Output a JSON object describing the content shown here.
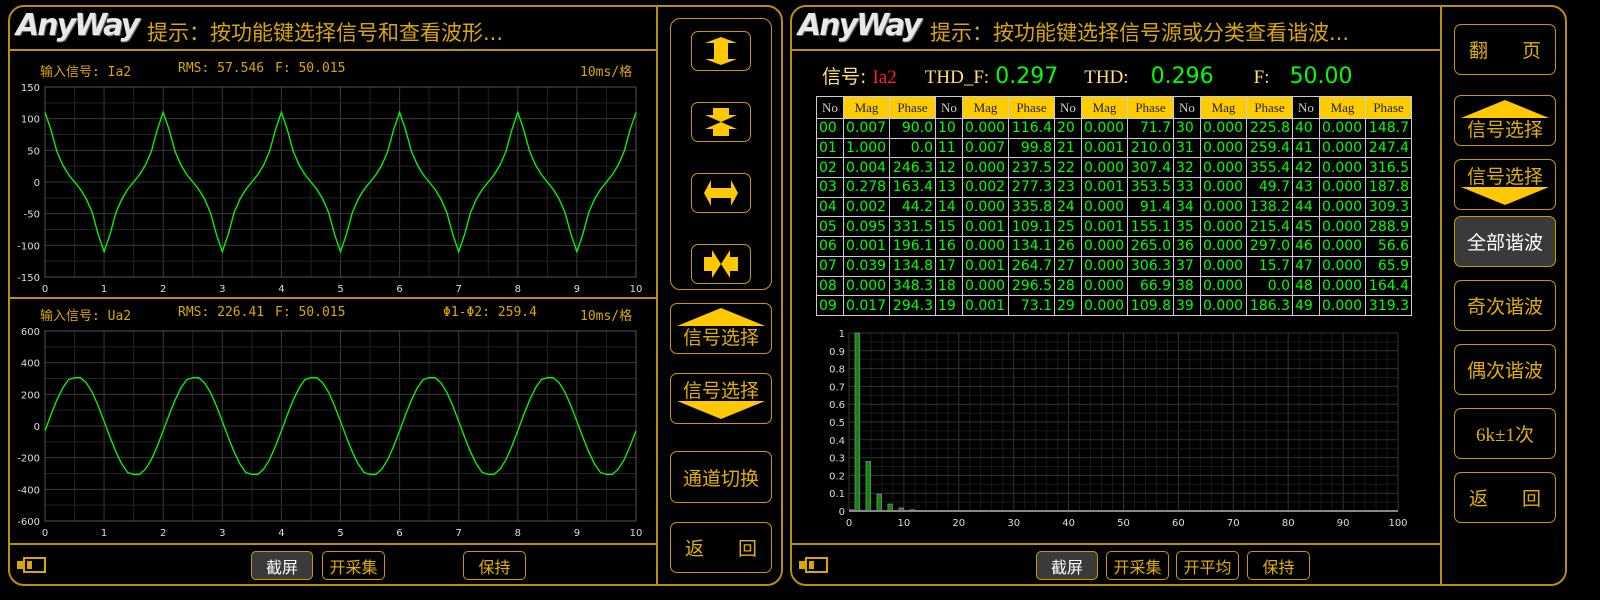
{
  "colors": {
    "accent": "#d9a800",
    "wave": "#00ff00",
    "active_button": "#3a3a3a",
    "table_header": "#ffcc00",
    "signal_name": "#ff2020"
  },
  "left_window": {
    "logo": "AnyWay",
    "hint": "提示：按功能键选择信号和查看波形...",
    "panel1": {
      "signal": "输入信号: Ia2",
      "rms": "RMS: 57.546",
      "freq": "F: 50.015",
      "scale": "10ms/格"
    },
    "panel2": {
      "signal": "输入信号: Ua2",
      "rms": "RMS: 226.41",
      "freq": "F: 50.015",
      "phase_diff": "Φ1-Φ2: 259.4",
      "scale": "10ms/格"
    },
    "side_buttons": {
      "icons": [
        "expand-vertical-icon",
        "compress-vertical-icon",
        "expand-horizontal-icon",
        "compress-horizontal-icon"
      ],
      "signal_up": "信号选择",
      "signal_down": "信号选择",
      "channel_switch": "通道切换",
      "back_left": "返",
      "back_right": "回"
    },
    "bottom": {
      "battery_icon": "battery-icon",
      "screenshot": "截屏",
      "start_capture": "开采集",
      "hold": "保持"
    }
  },
  "right_window": {
    "logo": "AnyWay",
    "hint": "提示：按功能键选择信号源或分类查看谐波...",
    "info": {
      "signal_label": "信号:",
      "signal_value": "Ia2",
      "thd_f_label": "THD_F:",
      "thd_f_value": "0.297",
      "thd_label": "THD:",
      "thd_value": "0.296",
      "f_label": "F:",
      "f_value": "50.00"
    },
    "table_headers": {
      "no": "No",
      "mag": "Mag",
      "phase": "Phase"
    },
    "side_buttons": {
      "page_left": "翻",
      "page_right": "页",
      "signal_up": "信号选择",
      "signal_down": "信号选择",
      "all": "全部谐波",
      "odd": "奇次谐波",
      "even": "偶次谐波",
      "six_k": "6k±1次",
      "back_left": "返",
      "back_right": "回"
    },
    "bottom": {
      "battery_icon": "battery-icon",
      "screenshot": "截屏",
      "start_capture": "开采集",
      "start_average": "开平均",
      "hold": "保持"
    }
  },
  "harmonics": [
    [
      "00",
      "0.007",
      "90.0"
    ],
    [
      "01",
      "1.000",
      "0.0"
    ],
    [
      "02",
      "0.004",
      "246.3"
    ],
    [
      "03",
      "0.278",
      "163.4"
    ],
    [
      "04",
      "0.002",
      "44.2"
    ],
    [
      "05",
      "0.095",
      "331.5"
    ],
    [
      "06",
      "0.001",
      "196.1"
    ],
    [
      "07",
      "0.039",
      "134.8"
    ],
    [
      "08",
      "0.000",
      "348.3"
    ],
    [
      "09",
      "0.017",
      "294.3"
    ],
    [
      "10",
      "0.000",
      "116.4"
    ],
    [
      "11",
      "0.007",
      "99.8"
    ],
    [
      "12",
      "0.000",
      "237.5"
    ],
    [
      "13",
      "0.002",
      "277.3"
    ],
    [
      "14",
      "0.000",
      "335.8"
    ],
    [
      "15",
      "0.001",
      "109.1"
    ],
    [
      "16",
      "0.000",
      "134.1"
    ],
    [
      "17",
      "0.001",
      "264.7"
    ],
    [
      "18",
      "0.000",
      "296.5"
    ],
    [
      "19",
      "0.001",
      "73.1"
    ],
    [
      "20",
      "0.000",
      "71.7"
    ],
    [
      "21",
      "0.001",
      "210.0"
    ],
    [
      "22",
      "0.000",
      "307.4"
    ],
    [
      "23",
      "0.001",
      "353.5"
    ],
    [
      "24",
      "0.000",
      "91.4"
    ],
    [
      "25",
      "0.001",
      "155.1"
    ],
    [
      "26",
      "0.000",
      "265.0"
    ],
    [
      "27",
      "0.000",
      "306.3"
    ],
    [
      "28",
      "0.000",
      "66.9"
    ],
    [
      "29",
      "0.000",
      "109.8"
    ],
    [
      "30",
      "0.000",
      "225.8"
    ],
    [
      "31",
      "0.000",
      "259.4"
    ],
    [
      "32",
      "0.000",
      "355.4"
    ],
    [
      "33",
      "0.000",
      "49.7"
    ],
    [
      "34",
      "0.000",
      "138.2"
    ],
    [
      "35",
      "0.000",
      "215.4"
    ],
    [
      "36",
      "0.000",
      "297.0"
    ],
    [
      "37",
      "0.000",
      "15.7"
    ],
    [
      "38",
      "0.000",
      "0.0"
    ],
    [
      "39",
      "0.000",
      "186.3"
    ],
    [
      "40",
      "0.000",
      "148.7"
    ],
    [
      "41",
      "0.000",
      "247.4"
    ],
    [
      "42",
      "0.000",
      "316.5"
    ],
    [
      "43",
      "0.000",
      "187.8"
    ],
    [
      "44",
      "0.000",
      "309.3"
    ],
    [
      "45",
      "0.000",
      "288.9"
    ],
    [
      "46",
      "0.000",
      "56.6"
    ],
    [
      "47",
      "0.000",
      "65.9"
    ],
    [
      "48",
      "0.000",
      "164.4"
    ],
    [
      "49",
      "0.000",
      "319.3"
    ]
  ],
  "chart_data": [
    {
      "type": "line",
      "x_start": 0,
      "x_step": 0.1,
      "xlim": [
        0,
        10
      ],
      "ylim": [
        -150,
        150
      ],
      "xticks": [
        "0",
        "1",
        "2",
        "3",
        "4",
        "5",
        "6",
        "7",
        "8",
        "9",
        "10"
      ],
      "yticks": [
        "150",
        "100",
        "50",
        "0",
        "-50",
        "-100",
        "-150"
      ],
      "grid": true,
      "y": [
        110,
        82.8,
        48.5,
        27,
        11.7,
        0,
        -11.7,
        -27,
        -48.5,
        -82.8,
        -110,
        -82.8,
        -48.5,
        -27,
        -11.7,
        0,
        11.7,
        27,
        48.5,
        82.8,
        110,
        82.8,
        48.5,
        27,
        11.7,
        0,
        -11.7,
        -27,
        -48.5,
        -82.8,
        -110,
        -82.8,
        -48.5,
        -27,
        -11.7,
        0,
        11.7,
        27,
        48.5,
        82.8,
        110,
        82.8,
        48.5,
        27,
        11.7,
        0,
        -11.7,
        -27,
        -48.5,
        -82.8,
        -110,
        -82.8,
        -48.5,
        -27,
        -11.7,
        0,
        11.7,
        27,
        48.5,
        82.8,
        110,
        82.8,
        48.5,
        27,
        11.7,
        0,
        -11.7,
        -27,
        -48.5,
        -82.8,
        -110,
        -82.8,
        -48.5,
        -27,
        -11.7,
        0,
        11.7,
        27,
        48.5,
        82.8,
        110,
        82.8,
        48.5,
        27,
        11.7,
        0,
        -11.7,
        -27,
        -48.5,
        -82.8,
        -110,
        -82.8,
        -48.5,
        -27,
        -11.7,
        0,
        11.7,
        27,
        48.5,
        82.8,
        110
      ]
    },
    {
      "type": "line",
      "x_start": 0,
      "x_step": 0.1,
      "xlim": [
        0,
        10
      ],
      "ylim": [
        -600,
        600
      ],
      "xticks": [
        "0",
        "1",
        "2",
        "3",
        "4",
        "5",
        "6",
        "7",
        "8",
        "9",
        "10"
      ],
      "yticks": [
        "600",
        "400",
        "200",
        "0",
        "-200",
        "-400",
        "-600"
      ],
      "grid": true,
      "y": [
        -30,
        70,
        163,
        240,
        294,
        305,
        305,
        272,
        212,
        127,
        30,
        -70,
        -163,
        -240,
        -294,
        -305,
        -305,
        -272,
        -212,
        -127,
        -30,
        70,
        163,
        240,
        294,
        305,
        305,
        272,
        212,
        127,
        30,
        -70,
        -163,
        -240,
        -294,
        -305,
        -305,
        -272,
        -212,
        -127,
        -30,
        70,
        163,
        240,
        294,
        305,
        305,
        272,
        212,
        127,
        30,
        -70,
        -163,
        -240,
        -294,
        -305,
        -305,
        -272,
        -212,
        -127,
        -30,
        70,
        163,
        240,
        294,
        305,
        305,
        272,
        212,
        127,
        30,
        -70,
        -163,
        -240,
        -294,
        -305,
        -305,
        -272,
        -212,
        -127,
        -30,
        70,
        163,
        240,
        294,
        305,
        305,
        272,
        212,
        127,
        30,
        -70,
        -163,
        -240,
        -294,
        -305,
        -305,
        -272,
        -212,
        -127,
        -30
      ]
    },
    {
      "type": "bar",
      "xlim": [
        0,
        100
      ],
      "ylim": [
        0,
        1
      ],
      "xticks": [
        "0",
        "10",
        "20",
        "30",
        "40",
        "50",
        "60",
        "70",
        "80",
        "90",
        "100"
      ],
      "yticks": [
        "1",
        "0.9",
        "0.8",
        "0.7",
        "0.6",
        "0.5",
        "0.4",
        "0.3",
        "0.2",
        "0.1",
        "0"
      ],
      "grid": true,
      "x": [
        0,
        1,
        2,
        3,
        4,
        5,
        6,
        7,
        8,
        9,
        10,
        11,
        12,
        13,
        14,
        15,
        16,
        17,
        18,
        19,
        20,
        21,
        22,
        23,
        24,
        25,
        26,
        27,
        28,
        29,
        30,
        31,
        32,
        33,
        34,
        35,
        36,
        37,
        38,
        39,
        40,
        41,
        42,
        43,
        44,
        45,
        46,
        47,
        48,
        49
      ],
      "values": [
        0.007,
        1.0,
        0.004,
        0.278,
        0.002,
        0.095,
        0.001,
        0.039,
        0.0,
        0.017,
        0.0,
        0.007,
        0.0,
        0.002,
        0.0,
        0.001,
        0.0,
        0.001,
        0.0,
        0.001,
        0.0,
        0.001,
        0.0,
        0.001,
        0.0,
        0.001,
        0,
        0,
        0,
        0,
        0,
        0,
        0,
        0,
        0,
        0,
        0,
        0,
        0,
        0,
        0,
        0,
        0,
        0,
        0,
        0,
        0,
        0,
        0,
        0
      ]
    }
  ]
}
